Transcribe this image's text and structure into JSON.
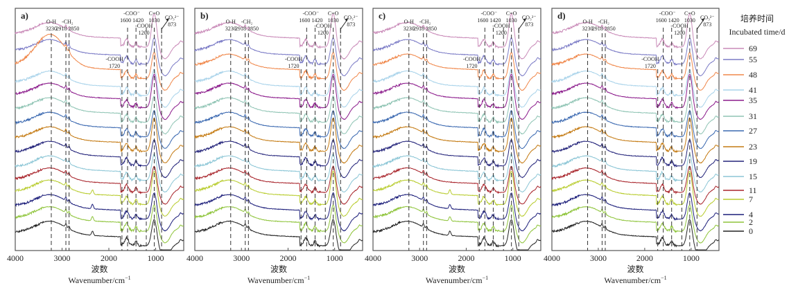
{
  "chart_data": {
    "type": "line",
    "description": "FTIR spectra stacked with vertical offsets for each incubation time, four panels",
    "panels": [
      {
        "letter": "a)"
      },
      {
        "letter": "b)"
      },
      {
        "letter": "c)"
      },
      {
        "letter": "d)"
      }
    ],
    "x_axis": {
      "label_cn": "波数",
      "label_en": "Wavenumber/cm",
      "label_en_sup": "−1",
      "range": [
        4000,
        400
      ],
      "ticks": [
        4000,
        3000,
        2000,
        1000
      ]
    },
    "y_axis": {
      "label": "",
      "ticks": [],
      "grid": false
    },
    "reference_lines": [
      {
        "x": 3230,
        "group": "O-H"
      },
      {
        "x": 2918,
        "group": "-CH2"
      },
      {
        "x": 2850,
        "group": "-CH2"
      },
      {
        "x": 1720,
        "group": "-COOH"
      },
      {
        "x": 1600,
        "group": "-COO"
      },
      {
        "x": 1420,
        "group": "-COO"
      },
      {
        "x": 1200,
        "group": "-COOH"
      },
      {
        "x": 1030,
        "group": "C=O"
      },
      {
        "x": 873,
        "group": "CO3"
      }
    ],
    "annotations": [
      {
        "name": "oh",
        "lines": [
          "O-H",
          "3230"
        ]
      },
      {
        "name": "ch2",
        "lines": [
          "-CH₂",
          "2918  2850"
        ]
      },
      {
        "name": "cooh1720",
        "lines": [
          "-COOH",
          "1720"
        ]
      },
      {
        "name": "coo",
        "lines": [
          "-COO⁻",
          "1600 1420"
        ]
      },
      {
        "name": "cooh1200",
        "lines": [
          "-COOH",
          "1200"
        ]
      },
      {
        "name": "co",
        "lines": [
          "C=O",
          "1030"
        ]
      },
      {
        "name": "co3",
        "lines": [
          "CO₃²⁻",
          "873"
        ]
      }
    ],
    "legend": {
      "title_cn": "培养时间",
      "title_en": "Incubated time/d",
      "placement": "right",
      "series": [
        {
          "name": "69",
          "color": "#c98ab8"
        },
        {
          "name": "55",
          "color": "#7b7bc6"
        },
        {
          "name": "48",
          "color": "#f0874a"
        },
        {
          "name": "41",
          "color": "#a9d3ea"
        },
        {
          "name": "35",
          "color": "#8b1a8b"
        },
        {
          "name": "31",
          "color": "#8fc4b4"
        },
        {
          "name": "27",
          "color": "#3a68b0"
        },
        {
          "name": "23",
          "color": "#c47a12"
        },
        {
          "name": "19",
          "color": "#23237a"
        },
        {
          "name": "15",
          "color": "#8cc6d6"
        },
        {
          "name": "11",
          "color": "#a8232a"
        },
        {
          "name": "7",
          "color": "#b8cc2e"
        },
        {
          "name": "4",
          "color": "#1c1e7a"
        },
        {
          "name": "2",
          "color": "#8ec43a"
        },
        {
          "name": "0",
          "color": "#222222"
        }
      ]
    },
    "series_offsets_relative": [
      0.86,
      0.79,
      0.73,
      0.66,
      0.61,
      0.55,
      0.49,
      0.43,
      0.37,
      0.31,
      0.26,
      0.21,
      0.15,
      0.1,
      0.04
    ]
  }
}
